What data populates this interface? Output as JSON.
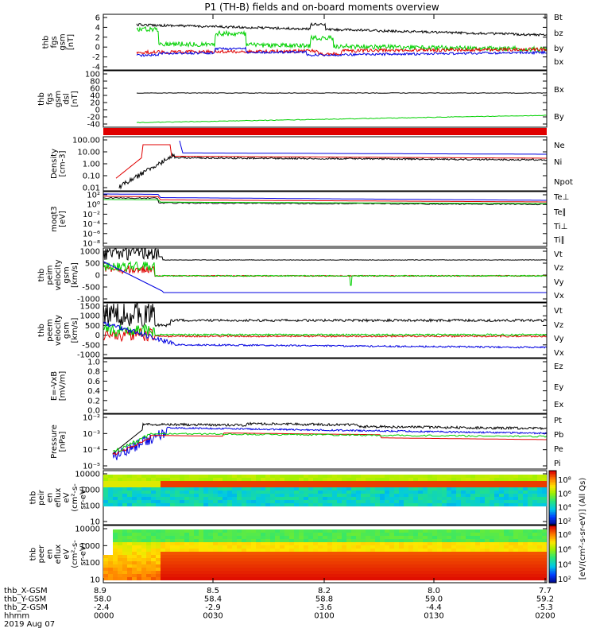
{
  "title": "P1 (TH-B) fields and on-board moments overview",
  "colors": {
    "black": "#000000",
    "red": "#e00000",
    "green": "#00d000",
    "blue": "#0000e0"
  },
  "chart_data": [
    {
      "type": "line",
      "id": "fgs",
      "ylabel": [
        "thb",
        "fgs",
        "gsm",
        "[nT]"
      ],
      "yticks": [
        "6",
        "4",
        "2",
        "0",
        "-2",
        "-4"
      ],
      "series": [
        {
          "name": "Bt",
          "color": "black"
        },
        {
          "name": "bz",
          "color": "red"
        },
        {
          "name": "by",
          "color": "green"
        },
        {
          "name": "bx",
          "color": "blue"
        }
      ]
    },
    {
      "type": "line",
      "id": "fgs-dsl",
      "ylabel": [
        "thb",
        "fgs",
        "gsm",
        "dsl",
        "[nT]"
      ],
      "yticks": [
        "100",
        "80",
        "60",
        "40",
        "20",
        "0",
        "-20",
        "-40"
      ],
      "series": [
        {
          "name": "Bx",
          "color": "black"
        },
        {
          "name": "By",
          "color": "green"
        }
      ]
    },
    {
      "type": "line",
      "id": "density",
      "ylabel": [
        "Density",
        "[cm-3]"
      ],
      "yticks": [
        "100.00",
        "10.00",
        "1.00",
        "0.10",
        "0.01"
      ],
      "series": [
        {
          "name": "Ne",
          "color": "red"
        },
        {
          "name": "Ni",
          "color": "black"
        },
        {
          "name": "Npot",
          "color": "blue"
        }
      ]
    },
    {
      "type": "line",
      "id": "temp",
      "ylabel": [
        "moqt3",
        "[eV]"
      ],
      "yticks": [
        "10²",
        "10⁰",
        "10⁻²",
        "10⁻⁴",
        "10⁻⁶",
        "10⁻⁸"
      ],
      "series": [
        {
          "name": "Te⊥",
          "color": "red"
        },
        {
          "name": "Te∥",
          "color": "black"
        },
        {
          "name": "Ti⊥",
          "color": "blue"
        },
        {
          "name": "Ti∥",
          "color": "green"
        }
      ]
    },
    {
      "type": "line",
      "id": "peim",
      "ylabel": [
        "thb",
        "peim",
        "velocity",
        "gsm",
        "[km/s]"
      ],
      "yticks": [
        "1000",
        "500",
        "0",
        "-500",
        "-1000"
      ],
      "series": [
        {
          "name": "Vt",
          "color": "black"
        },
        {
          "name": "Vz",
          "color": "red"
        },
        {
          "name": "Vy",
          "color": "green"
        },
        {
          "name": "Vx",
          "color": "blue"
        }
      ]
    },
    {
      "type": "line",
      "id": "peem",
      "ylabel": [
        "thb",
        "peem",
        "velocity",
        "gsm",
        "[km/s]"
      ],
      "yticks": [
        "1500",
        "1000",
        "500",
        "0",
        "-500",
        "-1000"
      ],
      "series": [
        {
          "name": "Vt",
          "color": "black"
        },
        {
          "name": "Vz",
          "color": "red"
        },
        {
          "name": "Vy",
          "color": "green"
        },
        {
          "name": "Vx",
          "color": "blue"
        }
      ]
    },
    {
      "type": "line",
      "id": "efield",
      "ylabel": [
        "E=-VxB",
        "[mV/m]"
      ],
      "yticks": [
        "1.0",
        "0.8",
        "0.6",
        "0.4",
        "0.2",
        "0.0"
      ],
      "series": [
        {
          "name": "Ez",
          "color": "red"
        },
        {
          "name": "Ey",
          "color": "green"
        },
        {
          "name": "Ex",
          "color": "blue"
        }
      ]
    },
    {
      "type": "line",
      "id": "pressure",
      "ylabel": [
        "Pressure",
        "[nPa]"
      ],
      "yticks": [
        "10⁻²",
        "10⁻³",
        "10⁻⁴",
        "10⁻⁵"
      ],
      "series": [
        {
          "name": "Pt",
          "color": "black"
        },
        {
          "name": "Pb",
          "color": "red"
        },
        {
          "name": "Pe",
          "color": "green"
        },
        {
          "name": "Pi",
          "color": "blue"
        }
      ]
    },
    {
      "type": "heatmap",
      "id": "peir",
      "ylabel": [
        "thb",
        "peir",
        "en",
        "eflux",
        "eV",
        "(cm²-s-",
        "sr-eV)"
      ],
      "yticks": [
        "10000",
        "1000",
        "100",
        "10"
      ]
    },
    {
      "type": "heatmap",
      "id": "peer",
      "ylabel": [
        "thb",
        "peer",
        "en",
        "eflux",
        "eV",
        "(cm²-s-",
        "sr-eV)"
      ],
      "yticks": [
        "10000",
        "1000",
        "100",
        "10"
      ]
    }
  ],
  "colorbar": {
    "label": "[eV/(cm²-s-sr-eV)] (All Qs)",
    "ticks": [
      "10⁸",
      "10⁶",
      "10⁴",
      "10²",
      "10⁸",
      "10⁶",
      "10⁴",
      "10²"
    ]
  },
  "xaxis": {
    "rows": [
      {
        "label": "thb_X-GSM",
        "values": [
          "8.9",
          "8.5",
          "8.2",
          "8.0",
          "7.7"
        ]
      },
      {
        "label": "thb_Y-GSM",
        "values": [
          "58.0",
          "58.4",
          "58.8",
          "59.0",
          "59.2"
        ]
      },
      {
        "label": "thb_Z-GSM",
        "values": [
          "-2.4",
          "-2.9",
          "-3.6",
          "-4.4",
          "-5.3"
        ]
      },
      {
        "label": "hhmm",
        "values": [
          "0000",
          "0030",
          "0100",
          "0130",
          "0200"
        ]
      }
    ],
    "date": "2019 Aug 07"
  }
}
